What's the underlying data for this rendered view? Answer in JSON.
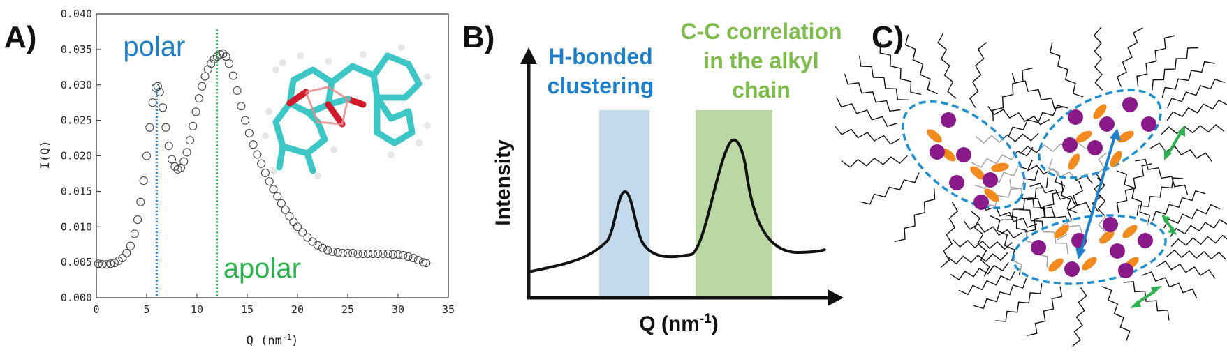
{
  "colors": {
    "blue": "#1f7fc8",
    "green": "#5cb84d",
    "green_text": "#7dbb4a",
    "blue_band": "#b8d3ea",
    "green_band": "#b3d49a",
    "purple": "#8a1a8a",
    "orange": "#f28a1e",
    "teal": "#3cc6c6",
    "red": "#d01a2a"
  },
  "panels": {
    "a": {
      "label": "A)"
    },
    "b": {
      "label": "B)"
    },
    "c": {
      "label": "C)"
    }
  },
  "chart_data": [
    {
      "type": "scatter",
      "panel": "A)",
      "xlabel_main": "Q (nm",
      "xlabel_sup": "-1",
      "xlabel_end": ")",
      "ylabel": "I(Q)",
      "xlim": [
        0,
        35
      ],
      "ylim": [
        0.0,
        0.04
      ],
      "x_ticks": [
        "0",
        "5",
        "10",
        "15",
        "20",
        "25",
        "30",
        "35"
      ],
      "y_ticks": [
        "0.000",
        "0.005",
        "0.010",
        "0.015",
        "0.020",
        "0.025",
        "0.030",
        "0.035",
        "0.040"
      ],
      "annotations": [
        {
          "text": "polar",
          "x": 6,
          "color": "blue"
        },
        {
          "text": "apolar",
          "x": 12,
          "color": "green"
        }
      ],
      "points": [
        [
          0.2,
          0.0048
        ],
        [
          0.6,
          0.0047
        ],
        [
          1.0,
          0.0047
        ],
        [
          1.4,
          0.0048
        ],
        [
          1.8,
          0.0049
        ],
        [
          2.2,
          0.0052
        ],
        [
          2.6,
          0.0056
        ],
        [
          3.0,
          0.0063
        ],
        [
          3.4,
          0.0073
        ],
        [
          3.8,
          0.009
        ],
        [
          4.1,
          0.011
        ],
        [
          4.4,
          0.0135
        ],
        [
          4.7,
          0.0165
        ],
        [
          5.0,
          0.02
        ],
        [
          5.3,
          0.024
        ],
        [
          5.6,
          0.0275
        ],
        [
          5.9,
          0.0296
        ],
        [
          6.1,
          0.0298
        ],
        [
          6.3,
          0.029
        ],
        [
          6.6,
          0.0268
        ],
        [
          6.9,
          0.024
        ],
        [
          7.2,
          0.0214
        ],
        [
          7.5,
          0.0195
        ],
        [
          7.8,
          0.0185
        ],
        [
          8.1,
          0.0181
        ],
        [
          8.4,
          0.0183
        ],
        [
          8.7,
          0.0192
        ],
        [
          9.0,
          0.0205
        ],
        [
          9.3,
          0.0222
        ],
        [
          9.6,
          0.0242
        ],
        [
          9.9,
          0.0262
        ],
        [
          10.2,
          0.0281
        ],
        [
          10.5,
          0.0298
        ],
        [
          10.8,
          0.0312
        ],
        [
          11.1,
          0.0322
        ],
        [
          11.4,
          0.033
        ],
        [
          11.7,
          0.0336
        ],
        [
          12.0,
          0.034
        ],
        [
          12.3,
          0.0343
        ],
        [
          12.6,
          0.0344
        ],
        [
          12.9,
          0.034
        ],
        [
          13.2,
          0.033
        ],
        [
          13.6,
          0.0313
        ],
        [
          14.0,
          0.0292
        ],
        [
          14.4,
          0.027
        ],
        [
          14.8,
          0.025
        ],
        [
          15.2,
          0.0232
        ],
        [
          15.6,
          0.0216
        ],
        [
          16.0,
          0.0202
        ],
        [
          16.4,
          0.0189
        ],
        [
          16.8,
          0.0176
        ],
        [
          17.2,
          0.0164
        ],
        [
          17.6,
          0.0153
        ],
        [
          18.0,
          0.0143
        ],
        [
          18.4,
          0.0133
        ],
        [
          18.8,
          0.0124
        ],
        [
          19.2,
          0.0115
        ],
        [
          19.6,
          0.0107
        ],
        [
          20.0,
          0.01
        ],
        [
          20.5,
          0.0092
        ],
        [
          21.0,
          0.0085
        ],
        [
          21.5,
          0.0079
        ],
        [
          22.0,
          0.0074
        ],
        [
          22.5,
          0.007
        ],
        [
          23.0,
          0.0067
        ],
        [
          23.5,
          0.0065
        ],
        [
          24.0,
          0.0064
        ],
        [
          24.5,
          0.0063
        ],
        [
          25.0,
          0.0063
        ],
        [
          25.5,
          0.0063
        ],
        [
          26.0,
          0.0062
        ],
        [
          26.5,
          0.0062
        ],
        [
          27.0,
          0.0062
        ],
        [
          27.5,
          0.0062
        ],
        [
          28.0,
          0.0062
        ],
        [
          28.5,
          0.0062
        ],
        [
          29.0,
          0.0062
        ],
        [
          29.5,
          0.0061
        ],
        [
          30.0,
          0.0061
        ],
        [
          30.5,
          0.006
        ],
        [
          31.0,
          0.0058
        ],
        [
          31.5,
          0.0056
        ],
        [
          32.0,
          0.0053
        ],
        [
          32.5,
          0.005
        ],
        [
          32.8,
          0.0049
        ]
      ]
    },
    {
      "type": "line",
      "panel": "B)",
      "xlabel_main": "Q (nm",
      "xlabel_sup": "-1",
      "xlabel_end": ")",
      "ylabel": "Intensity",
      "bands": [
        {
          "label_lines": [
            "H-bonded",
            "clustering"
          ],
          "color": "blue"
        },
        {
          "label_lines": [
            "C-C correlation",
            "in the alkyl",
            "chain"
          ],
          "color": "green"
        }
      ]
    }
  ]
}
